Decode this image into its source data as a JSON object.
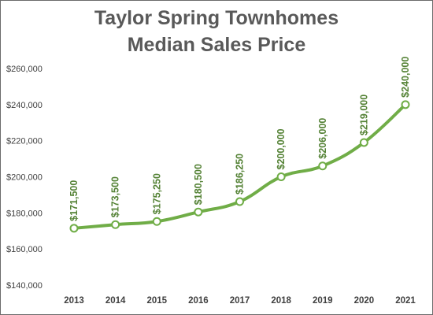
{
  "chart_data": {
    "type": "line",
    "title_line1": "Taylor Spring Townhomes",
    "title_line2": "Median Sales Price",
    "xlabel": "",
    "ylabel": "",
    "categories": [
      "2013",
      "2014",
      "2015",
      "2016",
      "2017",
      "2018",
      "2019",
      "2020",
      "2021"
    ],
    "values": [
      171500,
      173500,
      175250,
      180500,
      186250,
      200000,
      206000,
      219000,
      240000
    ],
    "data_labels": [
      "$171,500",
      "$173,500",
      "$175,250",
      "$180,500",
      "$186,250",
      "$200,000",
      "$206,000",
      "$219,000",
      "$240,000"
    ],
    "ylim": [
      140000,
      260000
    ],
    "ytick_values": [
      140000,
      160000,
      180000,
      200000,
      220000,
      240000,
      260000
    ],
    "ytick_labels": [
      "$140,000",
      "$160,000",
      "$180,000",
      "$200,000",
      "$220,000",
      "$240,000",
      "$260,000"
    ],
    "grid": false,
    "legend": "none",
    "colors": {
      "line": "#70ad47",
      "label": "#548235",
      "marker_fill": "#ffffff",
      "title": "#595959"
    }
  }
}
